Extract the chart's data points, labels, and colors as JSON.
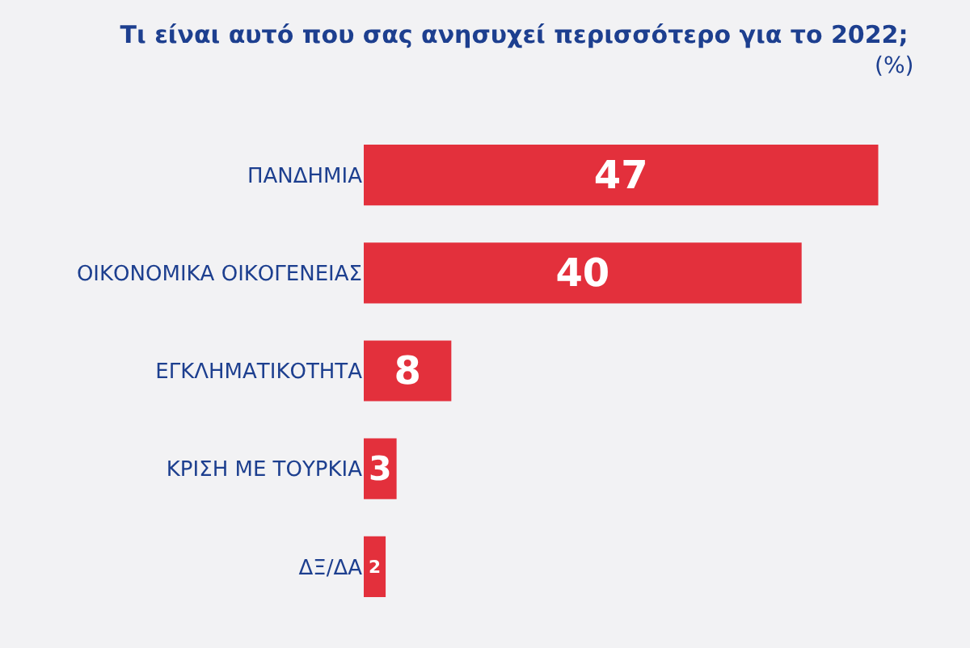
{
  "chart_data": {
    "type": "bar",
    "orientation": "horizontal",
    "title": "Τι είναι αυτό που σας ανησυχεί περισσότερο για το 2022;",
    "categories": [
      "ΠΑΝΔΗΜΙΑ",
      "ΟΙΚΟΝΟΜΙΚΑ ΟΙΚΟΓΕΝΕΙΑΣ",
      "ΕΓΚΛΗΜΑΤΙΚΟΤΗΤΑ",
      "ΚΡΙΣΗ ΜΕ ΤΟΥΡΚΙΑ",
      "ΔΞ/ΔΑ"
    ],
    "values": [
      47,
      40,
      8,
      3,
      2
    ],
    "color": "#e3303c",
    "data_labels": true,
    "annotations": [
      "(%)"
    ]
  }
}
